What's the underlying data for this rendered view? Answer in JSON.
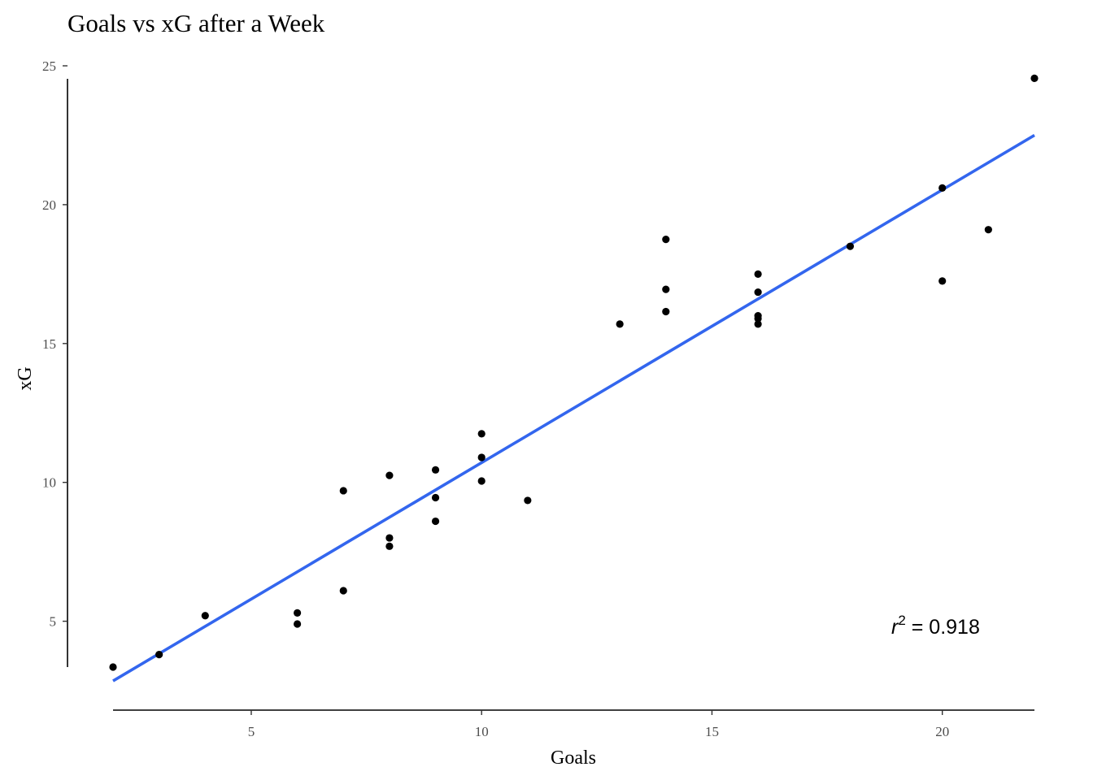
{
  "chart_data": {
    "type": "scatter",
    "title": "Goals vs xG after a Week",
    "xlabel": "Goals",
    "ylabel": "xG",
    "xlim": [
      2,
      22
    ],
    "ylim": [
      3.35,
      25
    ],
    "x_ticks": [
      5,
      10,
      15,
      20
    ],
    "y_ticks": [
      5,
      10,
      15,
      20,
      25
    ],
    "x_tick_labels": [
      "5",
      "10",
      "15",
      "20"
    ],
    "y_tick_labels": [
      "5",
      "10",
      "15",
      "20",
      "25"
    ],
    "grid": false,
    "points": [
      {
        "x": 2,
        "y": 3.35
      },
      {
        "x": 3,
        "y": 3.8
      },
      {
        "x": 4,
        "y": 5.2
      },
      {
        "x": 6,
        "y": 5.3
      },
      {
        "x": 6,
        "y": 4.9
      },
      {
        "x": 7,
        "y": 9.7
      },
      {
        "x": 7,
        "y": 6.1
      },
      {
        "x": 8,
        "y": 10.25
      },
      {
        "x": 8,
        "y": 8.0
      },
      {
        "x": 8,
        "y": 7.7
      },
      {
        "x": 9,
        "y": 10.45
      },
      {
        "x": 9,
        "y": 9.45
      },
      {
        "x": 9,
        "y": 8.6
      },
      {
        "x": 10,
        "y": 11.75
      },
      {
        "x": 10,
        "y": 10.9
      },
      {
        "x": 10,
        "y": 10.05
      },
      {
        "x": 11,
        "y": 9.35
      },
      {
        "x": 13,
        "y": 15.7
      },
      {
        "x": 14,
        "y": 18.75
      },
      {
        "x": 14,
        "y": 16.95
      },
      {
        "x": 14,
        "y": 16.15
      },
      {
        "x": 16,
        "y": 17.5
      },
      {
        "x": 16,
        "y": 16.85
      },
      {
        "x": 16,
        "y": 16.0
      },
      {
        "x": 16,
        "y": 15.9
      },
      {
        "x": 16,
        "y": 15.7
      },
      {
        "x": 18,
        "y": 18.5
      },
      {
        "x": 20,
        "y": 20.6
      },
      {
        "x": 20,
        "y": 17.25
      },
      {
        "x": 21,
        "y": 19.1
      },
      {
        "x": 22,
        "y": 24.55
      }
    ],
    "fit_line": {
      "x": [
        2,
        22
      ],
      "y": [
        2.85,
        22.5
      ],
      "color": "#3366ee"
    },
    "annotation": {
      "var": "r",
      "exp": "2",
      "rest": " = 0.918",
      "x": 20,
      "y": 4.8
    }
  }
}
